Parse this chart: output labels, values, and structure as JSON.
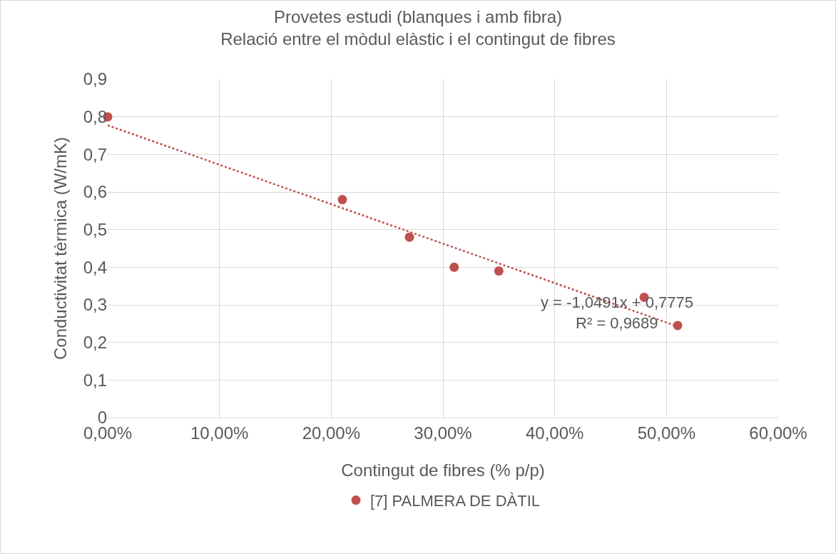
{
  "chart_data": {
    "type": "scatter",
    "title": "Provetes estudi (blanques i amb fibra)",
    "subtitle": "Relació entre el mòdul elàstic i el contingut de fibres",
    "xlabel": "Contingut de fibres (% p/p)",
    "ylabel": "Conductivitat tèrmica (W/mK)",
    "x": [
      0,
      0.21,
      0.27,
      0.31,
      0.35,
      0.48,
      0.51
    ],
    "series": [
      {
        "name": "[7] PALMERA DE DÀTIL",
        "color": "#c0504d",
        "values": [
          0.8,
          0.58,
          0.48,
          0.4,
          0.39,
          0.32,
          0.245
        ]
      },
      {
        "type": "line",
        "color": "#c0504d",
        "line_style": "dotted",
        "marker": "none",
        "x": [
          0,
          0.51
        ],
        "values": [
          0.7775,
          0.2425
        ]
      }
    ],
    "annotations": [
      "y = -1,0491x + 0,7775",
      "R² = 0,9689"
    ],
    "xlim": [
      0,
      0.6
    ],
    "xticks": [
      {
        "value": 0,
        "label": "0,00%"
      },
      {
        "value": 0.1,
        "label": "10,00%"
      },
      {
        "value": 0.2,
        "label": "20,00%"
      },
      {
        "value": 0.3,
        "label": "30,00%"
      },
      {
        "value": 0.4,
        "label": "40,00%"
      },
      {
        "value": 0.5,
        "label": "50,00%"
      },
      {
        "value": 0.6,
        "label": "60,00%"
      }
    ],
    "ylim": [
      0,
      0.9
    ],
    "yticks": [
      0,
      {
        "value": 0.1,
        "label": "0,1"
      },
      {
        "value": 0.2,
        "label": "0,2"
      },
      {
        "value": 0.3,
        "label": "0,3"
      },
      {
        "value": 0.4,
        "label": "0,4"
      },
      {
        "value": 0.5,
        "label": "0,5"
      },
      {
        "value": 0.6,
        "label": "0,6"
      },
      {
        "value": 0.7,
        "label": "0,7"
      },
      {
        "value": 0.8,
        "label": "0,8"
      },
      {
        "value": 0.9,
        "label": "0,9"
      }
    ],
    "grid": true,
    "legend": "bottom",
    "marker": "circle"
  }
}
